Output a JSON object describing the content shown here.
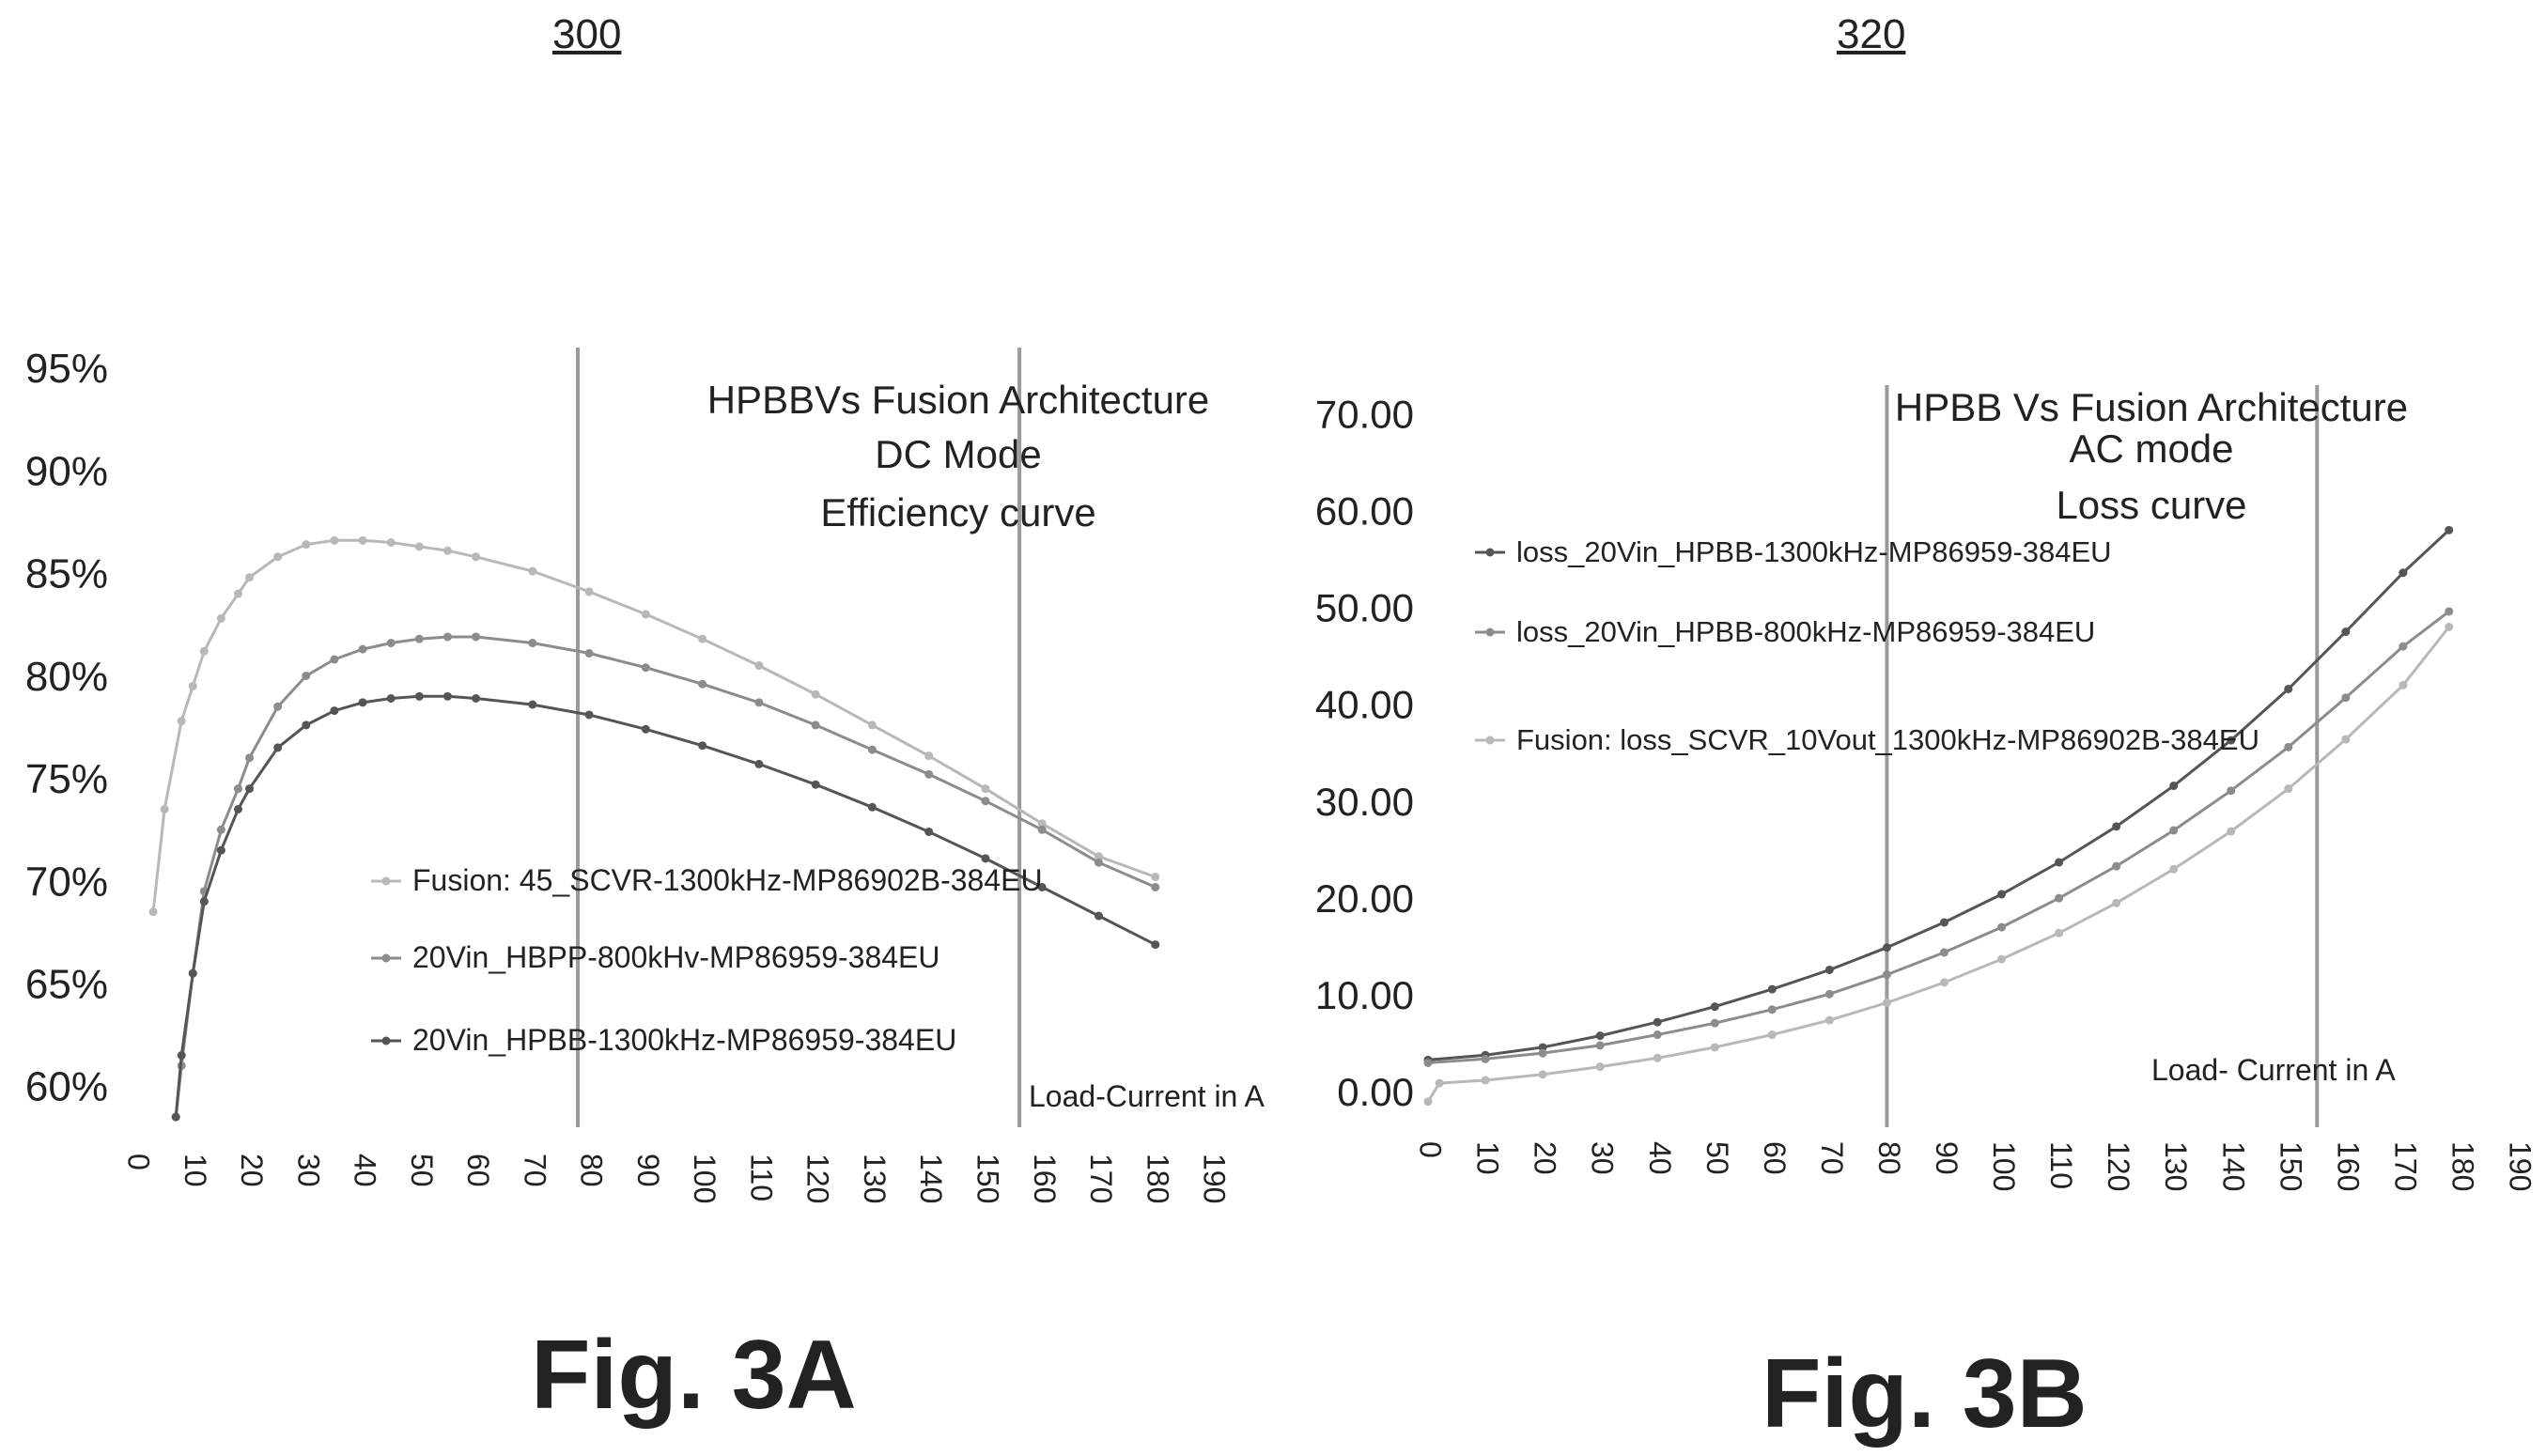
{
  "figure_a": {
    "ref": "300",
    "label": "Fig. 3A"
  },
  "figure_b": {
    "ref": "320",
    "label": "Fig. 3B"
  },
  "chart_data": [
    {
      "type": "line",
      "title_lines": [
        "HPBBVs Fusion Architecture",
        "DC Mode",
        "Efficiency curve"
      ],
      "xlabel": "Load-Current in A",
      "ylabel": "",
      "xlim": [
        0,
        190
      ],
      "ylim": [
        58,
        96
      ],
      "x_ticks": [
        0,
        10,
        20,
        30,
        40,
        50,
        60,
        70,
        80,
        90,
        100,
        110,
        120,
        130,
        140,
        150,
        160,
        170,
        180,
        190
      ],
      "y_ticks": [
        60,
        65,
        70,
        75,
        80,
        85,
        90,
        95
      ],
      "y_tick_labels": [
        "60%",
        "65%",
        "70%",
        "75%",
        "80%",
        "85%",
        "90%",
        "95%"
      ],
      "vlines": [
        78,
        156
      ],
      "grid": false,
      "series": [
        {
          "name": "Fusion: 45_SCVR-1300kHz-MP86902B-384EU",
          "color": "#b8b8b8",
          "x": [
            3,
            5,
            8,
            10,
            12,
            15,
            18,
            20,
            25,
            30,
            35,
            40,
            45,
            50,
            55,
            60,
            70,
            80,
            90,
            100,
            110,
            120,
            130,
            140,
            150,
            160,
            170,
            180
          ],
          "y": [
            68.5,
            73.5,
            77.8,
            79.5,
            81.2,
            82.8,
            84.0,
            84.8,
            85.8,
            86.4,
            86.6,
            86.6,
            86.5,
            86.3,
            86.1,
            85.8,
            85.1,
            84.1,
            83.0,
            81.8,
            80.5,
            79.1,
            77.6,
            76.1,
            74.5,
            72.8,
            71.2,
            70.2
          ]
        },
        {
          "name": "20Vin_HBPP-800kHv-MP86959-384EU",
          "color": "#8c8c8c",
          "x": [
            7,
            8,
            10,
            12,
            15,
            18,
            20,
            25,
            30,
            35,
            40,
            45,
            50,
            55,
            60,
            70,
            80,
            90,
            100,
            110,
            120,
            130,
            140,
            150,
            160,
            170,
            180
          ],
          "y": [
            58.5,
            61.0,
            65.5,
            69.5,
            72.5,
            74.5,
            76.0,
            78.5,
            80.0,
            80.8,
            81.3,
            81.6,
            81.8,
            81.9,
            81.9,
            81.6,
            81.1,
            80.4,
            79.6,
            78.7,
            77.6,
            76.4,
            75.2,
            73.9,
            72.5,
            70.9,
            69.7
          ]
        },
        {
          "name": "20Vin_HPBB-1300kHz-MP86959-384EU",
          "color": "#555555",
          "x": [
            7,
            8,
            10,
            12,
            15,
            18,
            20,
            25,
            30,
            35,
            40,
            45,
            50,
            55,
            60,
            70,
            80,
            90,
            100,
            110,
            120,
            130,
            140,
            150,
            160,
            170,
            180
          ],
          "y": [
            58.5,
            61.5,
            65.5,
            69.0,
            71.5,
            73.5,
            74.5,
            76.5,
            77.6,
            78.3,
            78.7,
            78.9,
            79.0,
            79.0,
            78.9,
            78.6,
            78.1,
            77.4,
            76.6,
            75.7,
            74.7,
            73.6,
            72.4,
            71.1,
            69.7,
            68.3,
            66.9
          ]
        }
      ]
    },
    {
      "type": "line",
      "title_lines": [
        "HPBB Vs Fusion Architecture",
        "AC mode",
        "Loss curve"
      ],
      "xlabel": "Load- Current in A",
      "ylabel": "",
      "xlim": [
        0,
        190
      ],
      "ylim": [
        -2,
        72
      ],
      "x_ticks": [
        0,
        10,
        20,
        30,
        40,
        50,
        60,
        70,
        80,
        90,
        100,
        110,
        120,
        130,
        140,
        150,
        160,
        170,
        180,
        190
      ],
      "y_ticks": [
        0,
        10,
        20,
        30,
        40,
        50,
        60,
        70
      ],
      "y_tick_labels": [
        "0.00",
        "10.00",
        "20.00",
        "30.00",
        "40.00",
        "50.00",
        "60.00",
        "70.00"
      ],
      "vlines": [
        80,
        155
      ],
      "grid": false,
      "series": [
        {
          "name": "loss_20Vin_HPBB-1300kHz-MP86959-384EU",
          "color": "#555555",
          "x": [
            0,
            10,
            20,
            30,
            40,
            50,
            60,
            70,
            80,
            90,
            100,
            110,
            120,
            130,
            140,
            150,
            160,
            170,
            178
          ],
          "y": [
            3.3,
            3.8,
            4.6,
            5.8,
            7.2,
            8.8,
            10.6,
            12.6,
            14.9,
            17.5,
            20.4,
            23.7,
            27.4,
            31.6,
            36.3,
            41.6,
            47.5,
            53.6,
            58.0
          ]
        },
        {
          "name": "loss_20Vin_HPBB-800kHz-MP86959-384EU",
          "color": "#8c8c8c",
          "x": [
            0,
            10,
            20,
            30,
            40,
            50,
            60,
            70,
            80,
            90,
            100,
            110,
            120,
            130,
            140,
            150,
            160,
            170,
            178
          ],
          "y": [
            3.0,
            3.4,
            4.0,
            4.8,
            5.9,
            7.1,
            8.5,
            10.1,
            12.1,
            14.4,
            17.0,
            20.0,
            23.3,
            27.0,
            31.1,
            35.6,
            40.7,
            46.0,
            49.6
          ]
        },
        {
          "name": "Fusion: loss_SCVR_10Vout_1300kHz-MP86902B-384EU",
          "color": "#b8b8b8",
          "x": [
            0,
            2,
            10,
            20,
            30,
            40,
            50,
            60,
            70,
            80,
            90,
            100,
            110,
            120,
            130,
            140,
            150,
            160,
            170,
            178
          ],
          "y": [
            -1.0,
            0.9,
            1.2,
            1.8,
            2.6,
            3.5,
            4.6,
            5.9,
            7.4,
            9.2,
            11.3,
            13.7,
            16.4,
            19.5,
            23.0,
            26.9,
            31.3,
            36.4,
            42.0,
            48.0
          ]
        }
      ]
    }
  ]
}
